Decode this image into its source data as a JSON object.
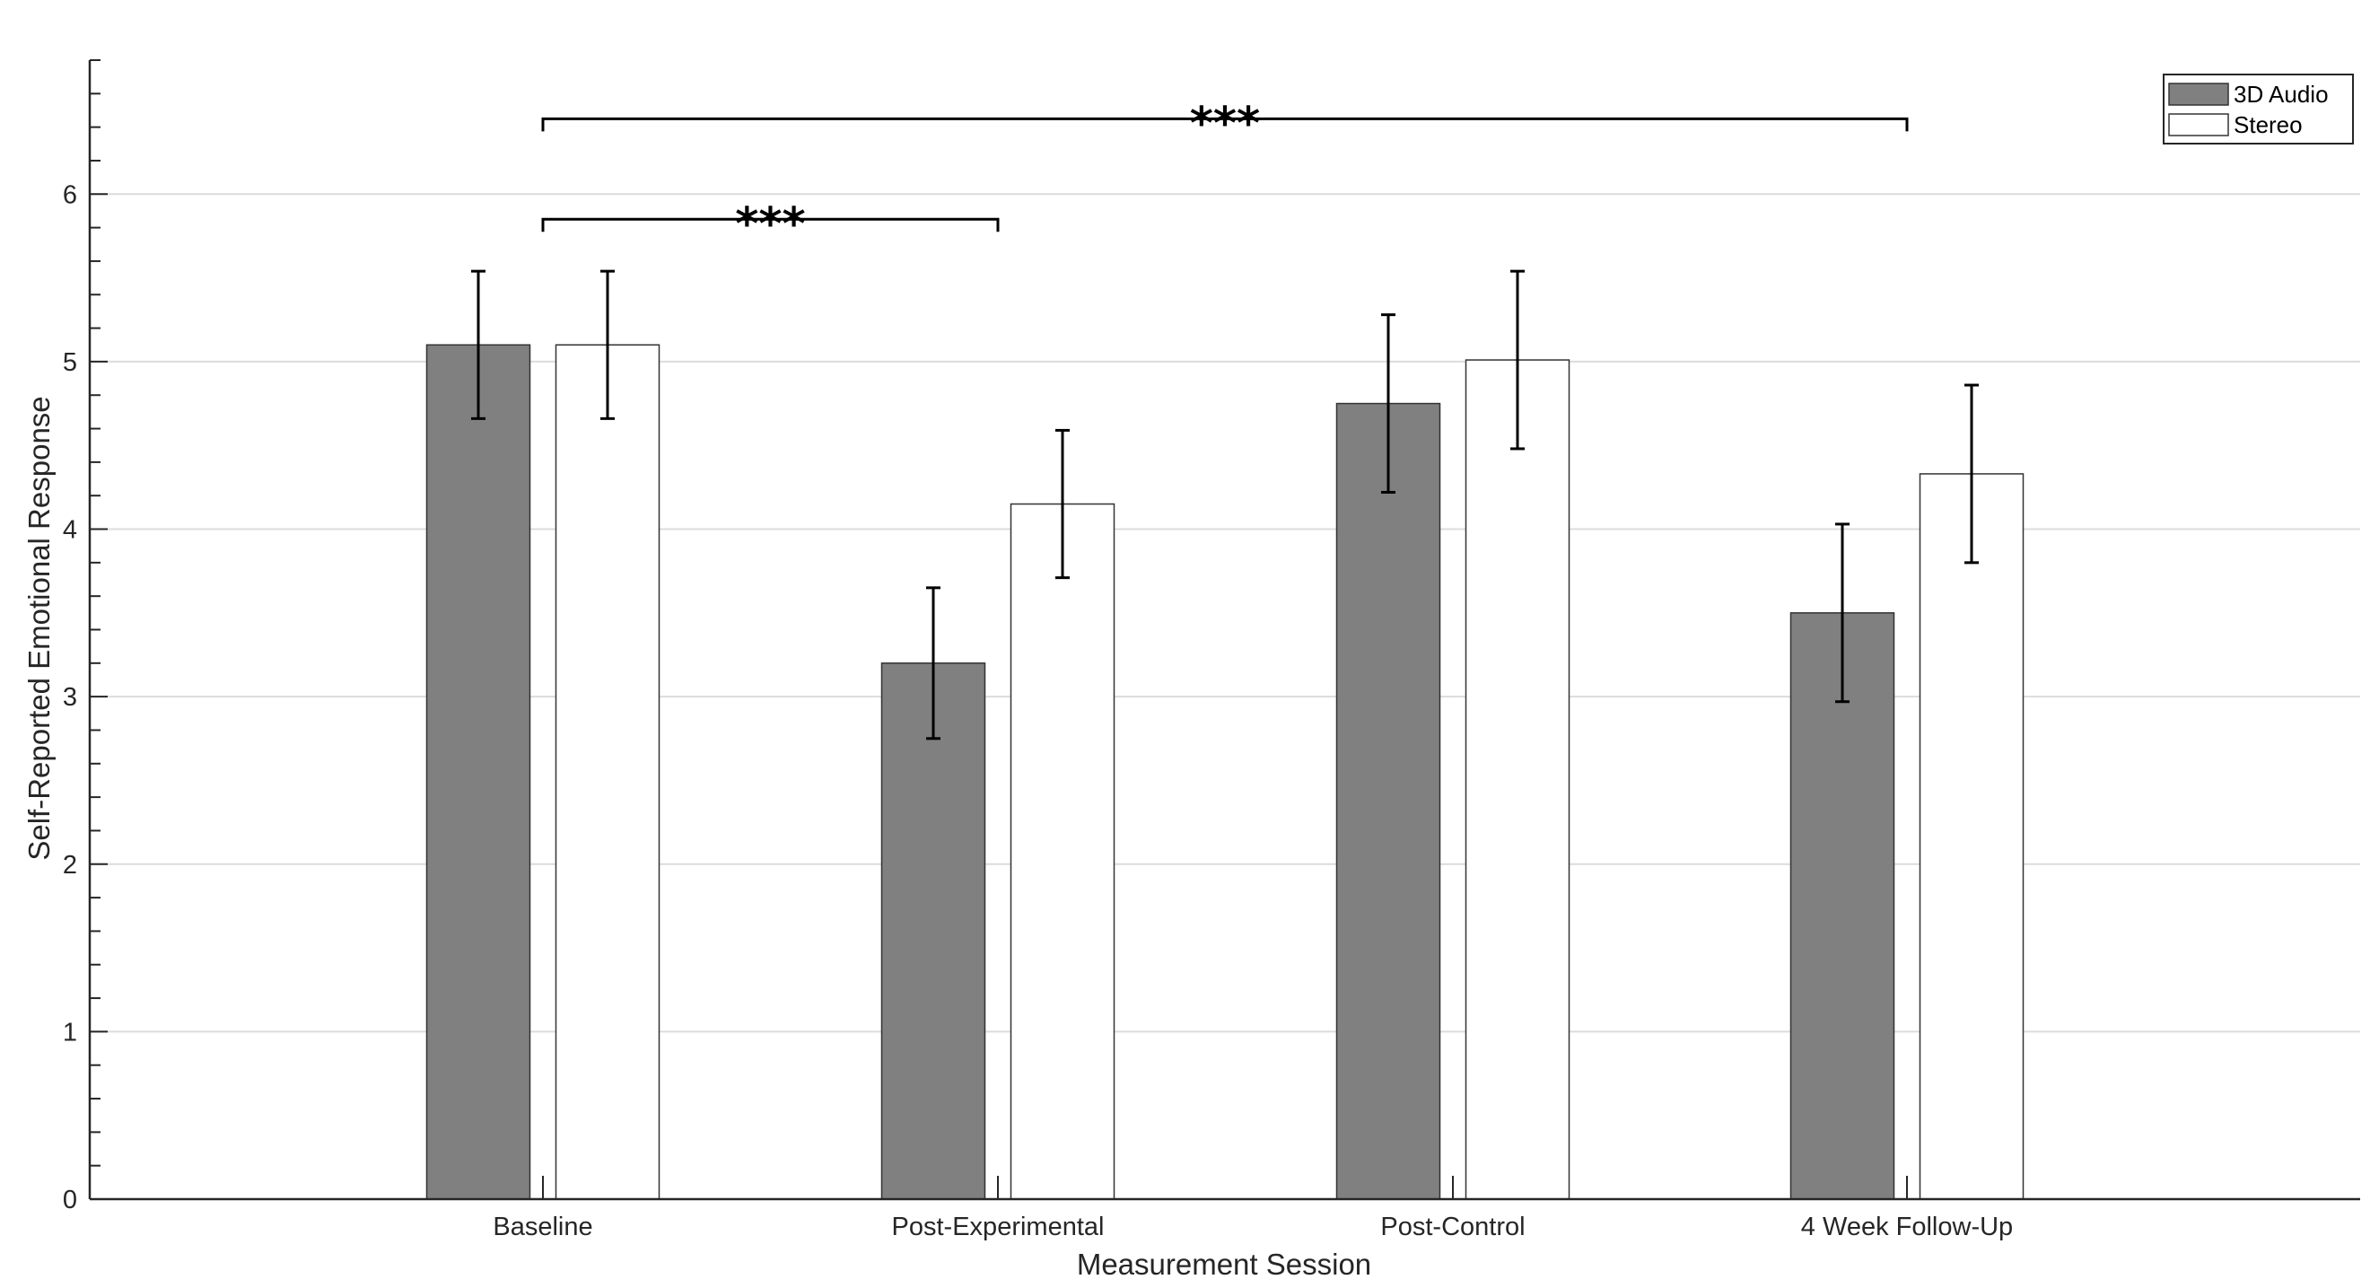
{
  "chart_data": {
    "type": "bar",
    "categories": [
      "Baseline",
      "Post-Experimental",
      "Post-Control",
      "4 Week Follow-Up"
    ],
    "series": [
      {
        "name": "3D Audio",
        "values": [
          5.1,
          3.2,
          4.75,
          3.5
        ],
        "errors": [
          0.44,
          0.45,
          0.53,
          0.53
        ],
        "color": "#808080"
      },
      {
        "name": "Stereo",
        "values": [
          5.1,
          4.15,
          5.01,
          4.33
        ],
        "errors": [
          0.44,
          0.44,
          0.53,
          0.53
        ],
        "color": "#ffffff"
      }
    ],
    "xlabel": "Measurement Session",
    "ylabel": "Self-Reported Emotional Response",
    "ylim": [
      0,
      6.8
    ],
    "yticks": [
      0,
      1,
      2,
      3,
      4,
      5,
      6
    ],
    "yticklabels": [
      "0",
      "1",
      "2",
      "3",
      "4",
      "5",
      "6"
    ],
    "grid": "horizontal",
    "legend_location": "top-right",
    "significance": [
      {
        "from": "Baseline",
        "to": "Post-Experimental",
        "label": "***",
        "level": 5.85
      },
      {
        "from": "Baseline",
        "to": "4 Week Follow-Up",
        "label": "***",
        "level": 6.45
      }
    ]
  }
}
